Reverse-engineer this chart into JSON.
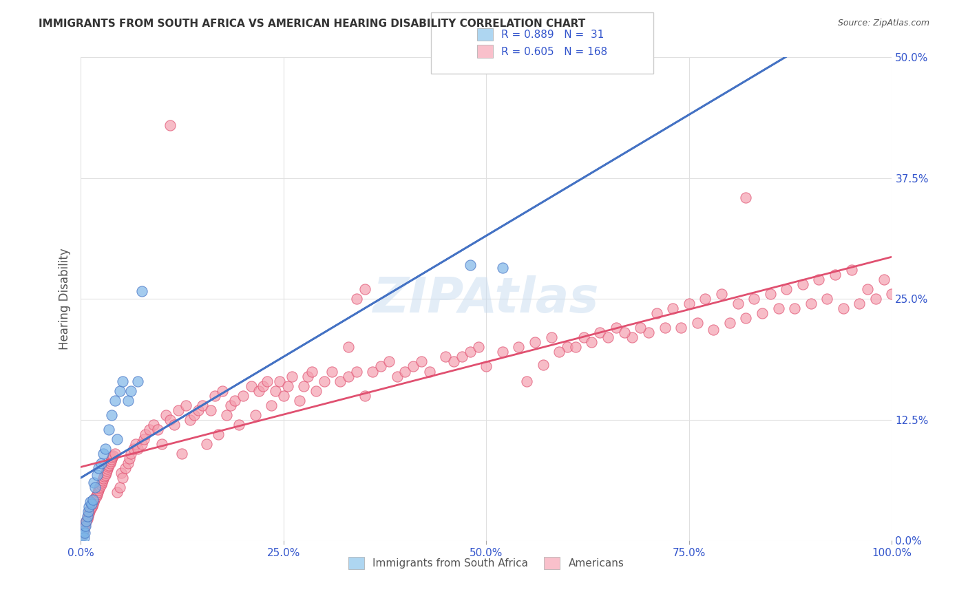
{
  "title": "IMMIGRANTS FROM SOUTH AFRICA VS AMERICAN HEARING DISABILITY CORRELATION CHART",
  "source": "Source: ZipAtlas.com",
  "xlabel_ticks": [
    "0.0%",
    "25.0%",
    "50.0%",
    "75.0%",
    "100.0%"
  ],
  "xlabel_tick_vals": [
    0.0,
    0.25,
    0.5,
    0.75,
    1.0
  ],
  "ylabel": "Hearing Disability",
  "ylabel_ticks": [
    "0.0%",
    "12.5%",
    "25.0%",
    "37.5%",
    "50.0%"
  ],
  "ylabel_tick_vals": [
    0.0,
    0.125,
    0.25,
    0.375,
    0.5
  ],
  "xlim": [
    0.0,
    1.0
  ],
  "ylim": [
    0.0,
    0.5
  ],
  "blue_R": 0.889,
  "blue_N": 31,
  "pink_R": 0.605,
  "pink_N": 168,
  "blue_color": "#7EB6E8",
  "pink_color": "#F4A0B0",
  "blue_line_color": "#4472C4",
  "pink_line_color": "#E05070",
  "legend_box_blue": "#AED6F1",
  "legend_box_pink": "#F9C0CB",
  "legend_text_color": "#3355CC",
  "watermark_text": "ZIPAtlas",
  "watermark_color": "#C8DCF0",
  "grid_color": "#E0E0E0",
  "background_color": "#FFFFFF",
  "blue_x": [
    0.002,
    0.003,
    0.004,
    0.005,
    0.006,
    0.007,
    0.008,
    0.009,
    0.01,
    0.012,
    0.013,
    0.015,
    0.016,
    0.018,
    0.02,
    0.022,
    0.025,
    0.028,
    0.03,
    0.035,
    0.038,
    0.042,
    0.045,
    0.048,
    0.052,
    0.058,
    0.062,
    0.07,
    0.075,
    0.48,
    0.52
  ],
  "blue_y": [
    0.005,
    0.01,
    0.003,
    0.008,
    0.015,
    0.02,
    0.025,
    0.03,
    0.035,
    0.04,
    0.038,
    0.042,
    0.06,
    0.055,
    0.068,
    0.075,
    0.08,
    0.09,
    0.095,
    0.115,
    0.13,
    0.145,
    0.105,
    0.155,
    0.165,
    0.145,
    0.155,
    0.165,
    0.258,
    0.285,
    0.282
  ],
  "pink_x": [
    0.001,
    0.002,
    0.003,
    0.004,
    0.005,
    0.006,
    0.007,
    0.008,
    0.009,
    0.01,
    0.011,
    0.012,
    0.013,
    0.014,
    0.015,
    0.016,
    0.017,
    0.018,
    0.019,
    0.02,
    0.021,
    0.022,
    0.023,
    0.024,
    0.025,
    0.026,
    0.027,
    0.028,
    0.029,
    0.03,
    0.031,
    0.032,
    0.033,
    0.034,
    0.035,
    0.036,
    0.037,
    0.038,
    0.039,
    0.04,
    0.042,
    0.045,
    0.048,
    0.05,
    0.052,
    0.055,
    0.058,
    0.06,
    0.062,
    0.065,
    0.068,
    0.07,
    0.075,
    0.078,
    0.08,
    0.085,
    0.09,
    0.095,
    0.1,
    0.105,
    0.11,
    0.115,
    0.12,
    0.125,
    0.13,
    0.135,
    0.14,
    0.145,
    0.15,
    0.155,
    0.16,
    0.165,
    0.17,
    0.175,
    0.18,
    0.185,
    0.19,
    0.195,
    0.2,
    0.21,
    0.215,
    0.22,
    0.225,
    0.23,
    0.235,
    0.24,
    0.245,
    0.25,
    0.255,
    0.26,
    0.27,
    0.275,
    0.28,
    0.285,
    0.29,
    0.3,
    0.31,
    0.32,
    0.33,
    0.34,
    0.35,
    0.36,
    0.37,
    0.38,
    0.39,
    0.4,
    0.41,
    0.42,
    0.43,
    0.45,
    0.46,
    0.47,
    0.48,
    0.49,
    0.5,
    0.52,
    0.54,
    0.56,
    0.58,
    0.6,
    0.62,
    0.64,
    0.66,
    0.68,
    0.7,
    0.72,
    0.74,
    0.76,
    0.78,
    0.8,
    0.82,
    0.84,
    0.86,
    0.88,
    0.9,
    0.92,
    0.94,
    0.96,
    0.98,
    1.0,
    0.55,
    0.57,
    0.59,
    0.61,
    0.63,
    0.65,
    0.67,
    0.69,
    0.71,
    0.73,
    0.75,
    0.77,
    0.79,
    0.81,
    0.83,
    0.85,
    0.87,
    0.89,
    0.91,
    0.93,
    0.95,
    0.97,
    0.99,
    0.33,
    0.34,
    0.35,
    0.11,
    0.82
  ],
  "pink_y": [
    0.005,
    0.008,
    0.01,
    0.012,
    0.015,
    0.018,
    0.02,
    0.022,
    0.025,
    0.028,
    0.03,
    0.032,
    0.034,
    0.036,
    0.038,
    0.04,
    0.042,
    0.044,
    0.046,
    0.048,
    0.05,
    0.052,
    0.054,
    0.056,
    0.058,
    0.06,
    0.062,
    0.064,
    0.066,
    0.068,
    0.07,
    0.072,
    0.074,
    0.076,
    0.078,
    0.08,
    0.082,
    0.084,
    0.086,
    0.088,
    0.09,
    0.05,
    0.055,
    0.07,
    0.065,
    0.075,
    0.08,
    0.085,
    0.09,
    0.095,
    0.1,
    0.095,
    0.1,
    0.105,
    0.11,
    0.115,
    0.12,
    0.115,
    0.1,
    0.13,
    0.125,
    0.12,
    0.135,
    0.09,
    0.14,
    0.125,
    0.13,
    0.135,
    0.14,
    0.1,
    0.135,
    0.15,
    0.11,
    0.155,
    0.13,
    0.14,
    0.145,
    0.12,
    0.15,
    0.16,
    0.13,
    0.155,
    0.16,
    0.165,
    0.14,
    0.155,
    0.165,
    0.15,
    0.16,
    0.17,
    0.145,
    0.16,
    0.17,
    0.175,
    0.155,
    0.165,
    0.175,
    0.165,
    0.17,
    0.175,
    0.15,
    0.175,
    0.18,
    0.185,
    0.17,
    0.175,
    0.18,
    0.185,
    0.175,
    0.19,
    0.185,
    0.19,
    0.195,
    0.2,
    0.18,
    0.195,
    0.2,
    0.205,
    0.21,
    0.2,
    0.21,
    0.215,
    0.22,
    0.21,
    0.215,
    0.22,
    0.22,
    0.225,
    0.218,
    0.225,
    0.23,
    0.235,
    0.24,
    0.24,
    0.245,
    0.25,
    0.24,
    0.245,
    0.25,
    0.255,
    0.165,
    0.182,
    0.195,
    0.2,
    0.205,
    0.21,
    0.215,
    0.22,
    0.235,
    0.24,
    0.245,
    0.25,
    0.255,
    0.245,
    0.25,
    0.255,
    0.26,
    0.265,
    0.27,
    0.275,
    0.28,
    0.26,
    0.27,
    0.2,
    0.25,
    0.26,
    0.43,
    0.355
  ]
}
